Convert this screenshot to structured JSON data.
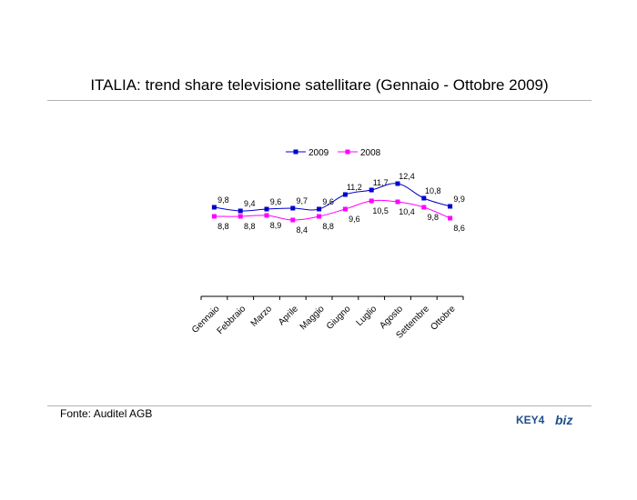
{
  "page": {
    "title": "ITALIA: trend share televisione satellitare (Gennaio - Ottobre 2009)",
    "source": "Fonte: Auditel AGB",
    "logo": {
      "text_left": "KEY4",
      "text_right": "biz",
      "color": "#1f4e8c"
    }
  },
  "chart_data": {
    "type": "line",
    "title": "",
    "xlabel": "",
    "ylabel": "",
    "categories": [
      "Gennaio",
      "Febbraio",
      "Marzo",
      "Aprile",
      "Maggio",
      "Giugno",
      "Luglio",
      "Agosto",
      "Settembre",
      "Ottobre"
    ],
    "series": [
      {
        "name": "2009",
        "color": "#0000cc",
        "values": [
          9.8,
          9.4,
          9.6,
          9.7,
          9.6,
          11.2,
          11.7,
          12.4,
          10.8,
          9.9
        ],
        "labels": [
          "9,8",
          "9,4",
          "9,6",
          "9,7",
          "9,6",
          "11,2",
          "11,7",
          "12,4",
          "10,8",
          "9,9"
        ]
      },
      {
        "name": "2008",
        "color": "#ff00ff",
        "values": [
          8.8,
          8.8,
          8.9,
          8.4,
          8.8,
          9.6,
          10.5,
          10.4,
          9.8,
          8.6
        ],
        "labels": [
          "8,8",
          "8,8",
          "8,9",
          "8,4",
          "8,8",
          "9,6",
          "10,5",
          "10,4",
          "9,8",
          "8,6"
        ]
      }
    ],
    "legend_position": "top",
    "grid": false,
    "y_axis_visible": false
  }
}
